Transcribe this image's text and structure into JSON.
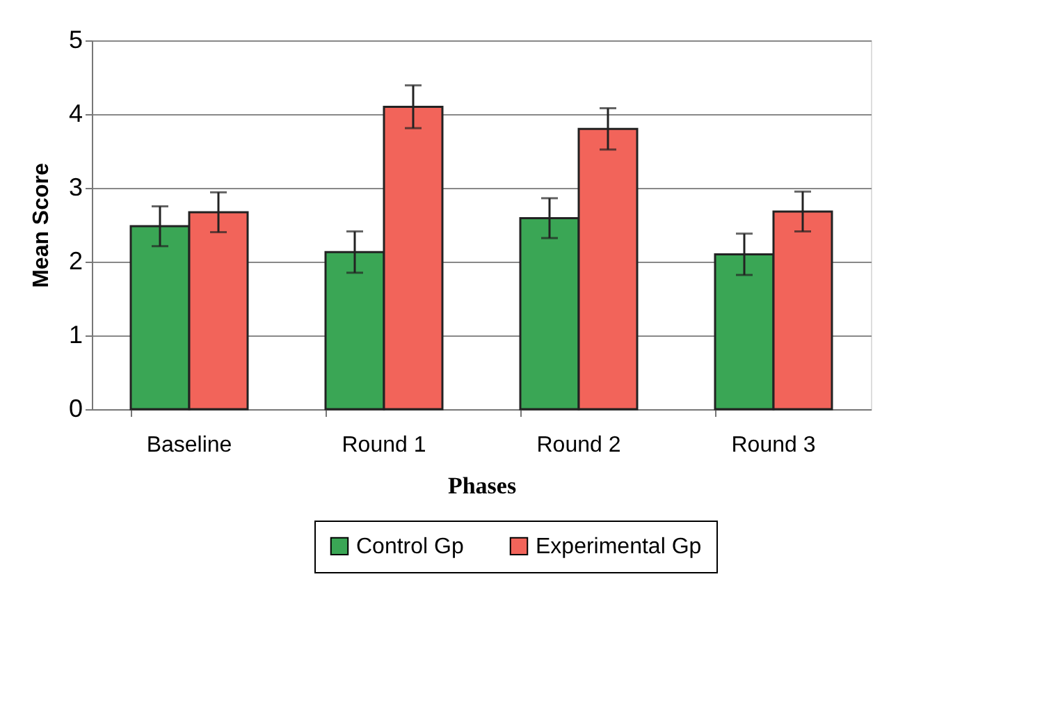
{
  "chart_data": {
    "type": "bar",
    "xlabel": "Phases",
    "ylabel": "Mean Score",
    "categories": [
      "Baseline",
      "Round 1",
      "Round 2",
      "Round 3"
    ],
    "series": [
      {
        "name": "Control Gp",
        "color": "#3aa655",
        "values": [
          2.48,
          2.13,
          2.59,
          2.1
        ],
        "errors": [
          0.27,
          0.28,
          0.27,
          0.28
        ]
      },
      {
        "name": "Experimental Gp",
        "color": "#f2645a",
        "values": [
          2.67,
          4.1,
          3.8,
          2.68
        ],
        "errors": [
          0.27,
          0.29,
          0.28,
          0.27
        ]
      }
    ],
    "ylim": [
      0,
      5
    ],
    "yticks": [
      0,
      1,
      2,
      3,
      4,
      5
    ],
    "grid": "y",
    "legend": "bottom"
  }
}
